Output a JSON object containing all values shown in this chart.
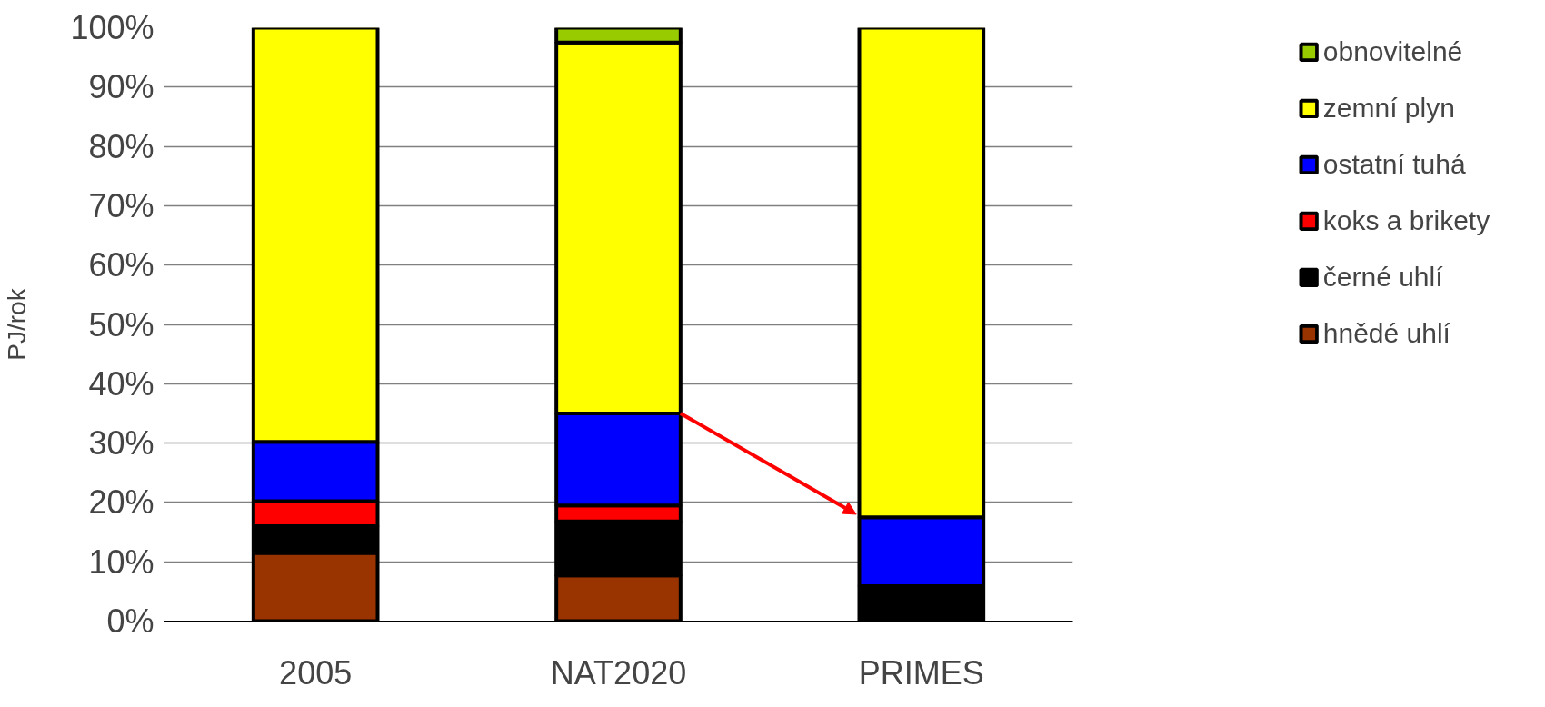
{
  "chart_data": {
    "type": "bar",
    "stacked": true,
    "ylabel": "PJ/rok",
    "categories": [
      "2005",
      "NAT2020",
      "PRIMES"
    ],
    "series": [
      {
        "name": "hnědé uhlí",
        "color": "#993300",
        "values": [
          11.5,
          7.7,
          null
        ]
      },
      {
        "name": "černé uhlí",
        "color": "#000000",
        "values": [
          4.5,
          9.1,
          5.9
        ]
      },
      {
        "name": "koks a brikety",
        "color": "#ff0000",
        "values": [
          4.2,
          2.7,
          null
        ]
      },
      {
        "name": "ostatní tuhá",
        "color": "#0000ff",
        "values": [
          10.0,
          15.5,
          11.6
        ]
      },
      {
        "name": "zemní plyn",
        "color": "#ffff00",
        "values": [
          69.8,
          62.5,
          82.5
        ]
      },
      {
        "name": "obnovitelné",
        "color": "#99cc00",
        "values": [
          null,
          2.5,
          null
        ]
      }
    ],
    "ylim": [
      0,
      100
    ],
    "yticks": [
      {
        "value": 0,
        "label": "0%"
      },
      {
        "value": 10,
        "label": "10%"
      },
      {
        "value": 20,
        "label": "20%"
      },
      {
        "value": 30,
        "label": "30%"
      },
      {
        "value": 40,
        "label": "40%"
      },
      {
        "value": 50,
        "label": "50%"
      },
      {
        "value": 60,
        "label": "60%"
      },
      {
        "value": 70,
        "label": "70%"
      },
      {
        "value": 80,
        "label": "80%"
      },
      {
        "value": 90,
        "label": "90%"
      },
      {
        "value": 100,
        "label": "100%"
      }
    ],
    "grid": "y",
    "legend": "right"
  }
}
